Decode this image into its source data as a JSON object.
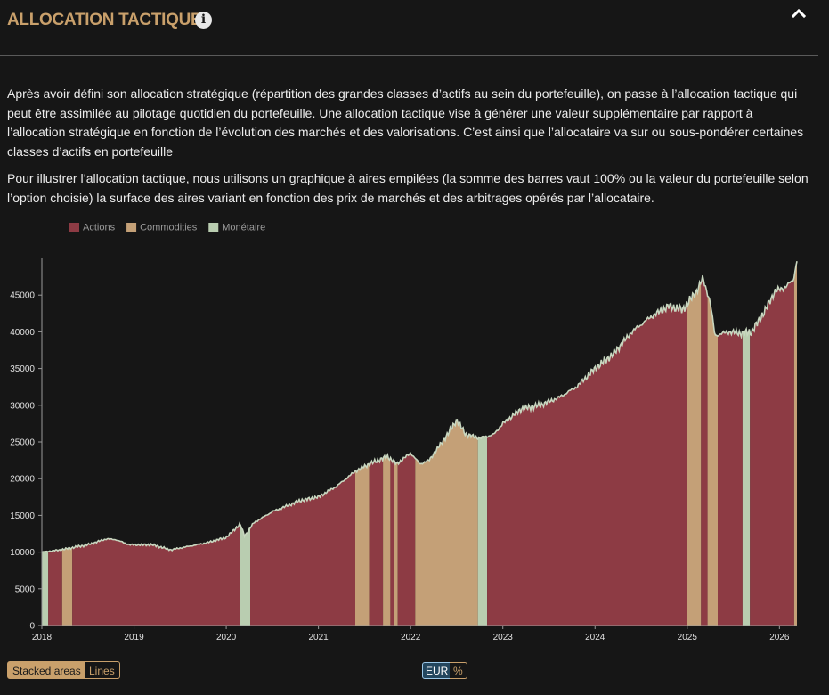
{
  "header": {
    "title": "ALLOCATION TACTIQUE",
    "info_icon": "info-icon",
    "collapse_icon": "chevron-up-icon"
  },
  "description": {
    "p1": "Après avoir défini son allocation stratégique (répartition des grandes classes d’actifs au sein du portefeuille), on passe à l’allocation tactique qui peut être assimilée au pilotage quotidien du portefeuille. Une allocation tactique vise à générer une valeur supplémentaire par rapport à l’allocation stratégique en fonction de l’évolution des marchés et des valorisations. C’est ainsi que l’allocataire va sur ou sous-pondérer certaines classes d’actifs en portefeuille",
    "p2": "Pour illustrer l’allocation tactique, nous utilisons un graphique à aires empilées (la somme des barres vaut 100% ou la valeur du portefeuille selon l’option choisie) la surface des aires variant en fonction des prix de marchés et des arbitrages opérés par l’allocataire."
  },
  "controls": {
    "chart_mode": [
      "Stacked areas",
      "Lines"
    ],
    "chart_mode_selected": "Stacked areas",
    "unit": [
      "EUR",
      "%"
    ],
    "unit_selected": "EUR"
  },
  "colors": {
    "actions": "#8d3b44",
    "commodities": "#c4a077",
    "monetaire": "#b9cdb0",
    "accent": "#c9a06b"
  },
  "chart_data": {
    "type": "area",
    "stacked": true,
    "legend_position": "top-left",
    "series": [
      {
        "name": "Actions",
        "color": "#8d3b44"
      },
      {
        "name": "Commodities",
        "color": "#c4a077"
      },
      {
        "name": "Monétaire",
        "color": "#b9cdb0"
      }
    ],
    "x_start": 2018.0,
    "x_end": 2026.19,
    "x_ticks": [
      "2018",
      "2019",
      "2020",
      "2021",
      "2022",
      "2023",
      "2024",
      "2025",
      "2026"
    ],
    "y_ticks": [
      "0",
      "5000",
      "10000",
      "15000",
      "20000",
      "25000",
      "30000",
      "35000",
      "40000",
      "45000"
    ],
    "ylim": [
      0,
      50000
    ],
    "total_value_points": [
      [
        2018.0,
        10000
      ],
      [
        2018.2,
        10300
      ],
      [
        2018.5,
        11000
      ],
      [
        2018.7,
        11800
      ],
      [
        2018.8,
        11700
      ],
      [
        2018.95,
        11000
      ],
      [
        2019.2,
        11000
      ],
      [
        2019.4,
        10300
      ],
      [
        2019.6,
        10800
      ],
      [
        2019.8,
        11300
      ],
      [
        2020.0,
        12000
      ],
      [
        2020.1,
        13200
      ],
      [
        2020.15,
        13800
      ],
      [
        2020.2,
        12200
      ],
      [
        2020.3,
        14000
      ],
      [
        2020.5,
        15500
      ],
      [
        2020.8,
        17000
      ],
      [
        2021.0,
        17500
      ],
      [
        2021.2,
        19000
      ],
      [
        2021.4,
        21000
      ],
      [
        2021.55,
        22000
      ],
      [
        2021.75,
        23000
      ],
      [
        2021.85,
        22000
      ],
      [
        2022.0,
        23500
      ],
      [
        2022.1,
        22000
      ],
      [
        2022.2,
        22500
      ],
      [
        2022.4,
        26000
      ],
      [
        2022.5,
        28000
      ],
      [
        2022.6,
        26000
      ],
      [
        2022.75,
        25500
      ],
      [
        2022.9,
        26000
      ],
      [
        2023.0,
        27500
      ],
      [
        2023.2,
        29500
      ],
      [
        2023.4,
        30000
      ],
      [
        2023.6,
        31000
      ],
      [
        2023.8,
        32500
      ],
      [
        2024.0,
        35000
      ],
      [
        2024.2,
        37000
      ],
      [
        2024.4,
        40000
      ],
      [
        2024.6,
        42000
      ],
      [
        2024.8,
        43500
      ],
      [
        2024.95,
        43000
      ],
      [
        2025.1,
        45500
      ],
      [
        2025.17,
        47300
      ],
      [
        2025.25,
        44000
      ],
      [
        2025.3,
        39500
      ],
      [
        2025.45,
        40000
      ],
      [
        2025.6,
        39800
      ],
      [
        2025.7,
        40000
      ],
      [
        2025.85,
        43000
      ],
      [
        2025.95,
        45500
      ],
      [
        2026.05,
        46000
      ],
      [
        2026.15,
        47000
      ],
      [
        2026.19,
        49800
      ]
    ],
    "regimes": [
      [
        2018.0,
        2018.07,
        "Monétaire"
      ],
      [
        2018.07,
        2018.22,
        "Actions"
      ],
      [
        2018.22,
        2018.33,
        "Commodities"
      ],
      [
        2018.33,
        2020.15,
        "Actions"
      ],
      [
        2020.15,
        2020.26,
        "Monétaire"
      ],
      [
        2020.26,
        2021.4,
        "Actions"
      ],
      [
        2021.4,
        2021.55,
        "Commodities"
      ],
      [
        2021.55,
        2021.7,
        "Actions"
      ],
      [
        2021.7,
        2021.78,
        "Commodities"
      ],
      [
        2021.78,
        2021.82,
        "Actions"
      ],
      [
        2021.82,
        2021.86,
        "Commodities"
      ],
      [
        2021.86,
        2022.05,
        "Actions"
      ],
      [
        2022.05,
        2022.73,
        "Commodities"
      ],
      [
        2022.73,
        2022.83,
        "Monétaire"
      ],
      [
        2022.83,
        2025.0,
        "Actions"
      ],
      [
        2025.0,
        2025.15,
        "Commodities"
      ],
      [
        2025.15,
        2025.22,
        "Actions"
      ],
      [
        2025.22,
        2025.33,
        "Commodities"
      ],
      [
        2025.33,
        2025.6,
        "Actions"
      ],
      [
        2025.6,
        2025.68,
        "Monétaire"
      ],
      [
        2025.68,
        2026.16,
        "Actions"
      ],
      [
        2026.16,
        2026.19,
        "Commodities"
      ]
    ]
  }
}
